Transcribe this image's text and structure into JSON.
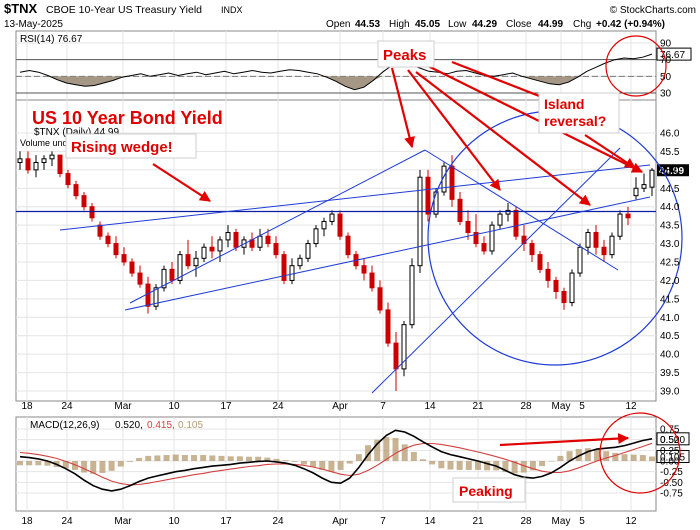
{
  "header": {
    "symbol": "$TNX",
    "name": "CBOE 10-Year US Treasury Yield",
    "exchange": "INDX",
    "date": "13-May-2025",
    "copyright": "© StockCharts.com",
    "ohlc": {
      "open_label": "Open",
      "open": "44.53",
      "high_label": "High",
      "high": "45.05",
      "low_label": "Low",
      "low": "44.29",
      "close_label": "Close",
      "close": "44.99",
      "chg_label": "Chg",
      "chg": "+0.42 (+0.94%)"
    }
  },
  "colors": {
    "up": "#000000",
    "down": "#cc0000",
    "trend": "#1f3cd8",
    "annotation": "#e00000",
    "rsi_fill": "#9b8c78",
    "macd_signal": "#d44040",
    "hist": "#b59b6f"
  },
  "annotations": {
    "title": "US 10 Year Bond  Yield",
    "peaks": "Peaks",
    "island": "Island reversal?",
    "island_line1": "Island",
    "island_line2": "reversal?",
    "wedge": "Rising wedge!",
    "peaking": "Peaking"
  },
  "chart_data": [
    {
      "type": "line",
      "panel": "RSI",
      "legend": "RSI(14) 76.67",
      "current_label": "76.67",
      "yticks": [
        30,
        50,
        70,
        90
      ],
      "ylim": [
        22,
        95
      ],
      "levels": [
        30,
        70
      ],
      "values": [
        55,
        57,
        55,
        51,
        46,
        42,
        40,
        38,
        39,
        42,
        45,
        49,
        51,
        53,
        50,
        52,
        54,
        51,
        53,
        55,
        52,
        54,
        56,
        53,
        55,
        57,
        55,
        54,
        56,
        58,
        57,
        55,
        53,
        49,
        44,
        38,
        34,
        37,
        45,
        55,
        63,
        68,
        64,
        60,
        56,
        55,
        53,
        56,
        57,
        54,
        51,
        50,
        52,
        54,
        50,
        47,
        44,
        41,
        40,
        43,
        49,
        56,
        61,
        66,
        70,
        72,
        71,
        73,
        76.67
      ]
    },
    {
      "type": "candlestick",
      "panel": "Price",
      "legend": "$TNX (Daily) 44.99",
      "volume_legend": "Volume undef",
      "current_label": "44.99",
      "yticks": [
        39.0,
        39.5,
        40.0,
        40.5,
        41.0,
        41.5,
        42.0,
        42.5,
        43.0,
        43.5,
        44.0,
        44.5,
        45.0,
        45.5,
        46.0
      ],
      "ylim": [
        38.85,
        46.25
      ],
      "xtick_labels": [
        "18",
        "24",
        "Mar",
        "10",
        "17",
        "24",
        "Apr",
        "7",
        "14",
        "21",
        "28",
        "May",
        "5",
        "12"
      ],
      "horizontal_line": 43.87,
      "candles": [
        [
          45.2,
          45.5,
          45.0,
          45.3
        ],
        [
          45.3,
          45.5,
          44.9,
          45.0
        ],
        [
          45.0,
          45.4,
          44.8,
          45.2
        ],
        [
          45.2,
          45.4,
          45.0,
          45.3
        ],
        [
          45.3,
          45.5,
          45.1,
          45.4
        ],
        [
          45.4,
          45.4,
          44.8,
          44.9
        ],
        [
          44.9,
          45.0,
          44.5,
          44.6
        ],
        [
          44.6,
          44.7,
          44.2,
          44.3
        ],
        [
          44.3,
          44.4,
          43.9,
          44.0
        ],
        [
          44.0,
          44.1,
          43.6,
          43.7
        ],
        [
          43.5,
          43.6,
          43.1,
          43.2
        ],
        [
          43.2,
          43.3,
          42.9,
          43.0
        ],
        [
          43.0,
          43.2,
          42.6,
          42.7
        ],
        [
          42.7,
          42.9,
          42.4,
          42.5
        ],
        [
          42.5,
          42.6,
          42.1,
          42.2
        ],
        [
          42.2,
          42.4,
          41.8,
          41.9
        ],
        [
          41.9,
          42.1,
          41.1,
          41.3
        ],
        [
          41.3,
          41.9,
          41.2,
          41.8
        ],
        [
          41.8,
          42.4,
          41.7,
          42.3
        ],
        [
          42.3,
          42.5,
          41.9,
          42.0
        ],
        [
          42.0,
          42.8,
          41.9,
          42.7
        ],
        [
          42.7,
          43.1,
          42.3,
          42.4
        ],
        [
          42.4,
          42.8,
          42.1,
          42.6
        ],
        [
          42.6,
          43.0,
          42.5,
          42.9
        ],
        [
          42.9,
          43.2,
          42.6,
          42.8
        ],
        [
          42.8,
          43.2,
          42.5,
          43.1
        ],
        [
          43.1,
          43.5,
          42.9,
          43.3
        ],
        [
          43.3,
          43.4,
          42.8,
          42.9
        ],
        [
          42.9,
          43.2,
          42.7,
          43.1
        ],
        [
          43.1,
          43.3,
          42.8,
          42.9
        ],
        [
          42.9,
          43.4,
          42.8,
          43.2
        ],
        [
          43.2,
          43.4,
          42.9,
          43.0
        ],
        [
          43.0,
          43.2,
          42.6,
          42.7
        ],
        [
          42.7,
          42.8,
          41.9,
          42.0
        ],
        [
          42.0,
          42.6,
          41.9,
          42.4
        ],
        [
          42.4,
          42.7,
          42.3,
          42.6
        ],
        [
          42.6,
          43.1,
          42.5,
          43.0
        ],
        [
          43.0,
          43.5,
          42.9,
          43.4
        ],
        [
          43.4,
          43.7,
          43.2,
          43.6
        ],
        [
          43.6,
          43.9,
          43.5,
          43.8
        ],
        [
          43.8,
          43.9,
          43.1,
          43.2
        ],
        [
          43.2,
          43.3,
          42.6,
          42.7
        ],
        [
          42.7,
          42.8,
          42.3,
          42.4
        ],
        [
          42.4,
          42.6,
          42.0,
          42.2
        ],
        [
          42.2,
          42.4,
          41.7,
          41.8
        ],
        [
          41.8,
          42.0,
          41.1,
          41.2
        ],
        [
          41.2,
          41.4,
          40.2,
          40.3
        ],
        [
          40.3,
          40.6,
          39.0,
          39.6
        ],
        [
          39.6,
          40.9,
          39.4,
          40.8
        ],
        [
          40.8,
          42.6,
          40.7,
          42.4
        ],
        [
          42.4,
          45.0,
          42.2,
          44.8
        ],
        [
          44.8,
          45.0,
          43.6,
          43.8
        ],
        [
          43.8,
          44.5,
          43.7,
          44.4
        ],
        [
          44.4,
          45.2,
          44.3,
          45.1
        ],
        [
          45.1,
          45.4,
          44.0,
          44.2
        ],
        [
          44.2,
          44.4,
          43.5,
          43.6
        ],
        [
          43.6,
          43.9,
          43.1,
          43.3
        ],
        [
          43.3,
          43.8,
          42.9,
          43.0
        ],
        [
          43.0,
          43.2,
          42.7,
          42.8
        ],
        [
          42.8,
          43.6,
          42.7,
          43.5
        ],
        [
          43.5,
          43.9,
          43.4,
          43.8
        ],
        [
          43.8,
          44.1,
          43.6,
          43.9
        ],
        [
          43.9,
          44.0,
          43.1,
          43.2
        ],
        [
          43.2,
          43.5,
          42.8,
          43.0
        ],
        [
          43.0,
          43.1,
          42.5,
          42.7
        ],
        [
          42.7,
          42.8,
          42.2,
          42.3
        ],
        [
          42.3,
          42.5,
          41.8,
          42.0
        ],
        [
          42.0,
          42.1,
          41.5,
          41.7
        ],
        [
          41.7,
          41.8,
          41.2,
          41.4
        ],
        [
          41.4,
          42.3,
          41.3,
          42.2
        ],
        [
          42.2,
          43.0,
          42.1,
          42.9
        ],
        [
          42.9,
          43.4,
          42.7,
          43.3
        ],
        [
          43.3,
          43.5,
          42.7,
          42.9
        ],
        [
          42.9,
          43.1,
          42.5,
          42.7
        ],
        [
          42.7,
          43.3,
          42.6,
          43.2
        ],
        [
          43.2,
          43.9,
          43.1,
          43.8
        ],
        [
          43.8,
          44.0,
          43.5,
          43.7
        ],
        [
          44.3,
          44.8,
          44.2,
          44.5
        ],
        [
          44.5,
          44.9,
          44.4,
          44.6
        ],
        [
          44.53,
          45.05,
          44.29,
          44.99
        ]
      ]
    },
    {
      "type": "line",
      "panel": "MACD",
      "legend_name": "MACD(12,26,9)",
      "legend_macd": "0.520,",
      "legend_signal": "0.415,",
      "legend_hist": "0.105",
      "current_macd_label": "0.520",
      "current_hist_label": "0.105",
      "yticks": [
        -0.75,
        -0.5,
        -0.25,
        0.0,
        0.25,
        0.5,
        0.75
      ],
      "yticklabels": [
        "-0.75",
        "-0.50",
        "-0.25",
        "0.00",
        "0.25",
        "0.50",
        "0.75"
      ],
      "ylim": [
        -0.9,
        0.9
      ],
      "series": [
        {
          "name": "MACD",
          "values": [
            0.1,
            0.08,
            0.05,
            0.0,
            -0.08,
            -0.18,
            -0.3,
            -0.45,
            -0.58,
            -0.66,
            -0.7,
            -0.66,
            -0.58,
            -0.48,
            -0.4,
            -0.35,
            -0.3,
            -0.25,
            -0.22,
            -0.18,
            -0.15,
            -0.12,
            -0.1,
            -0.08,
            -0.05,
            -0.03,
            -0.01,
            0.0,
            -0.02,
            -0.05,
            -0.1,
            -0.18,
            -0.28,
            -0.4,
            -0.5,
            -0.52,
            -0.4,
            -0.15,
            0.15,
            0.4,
            0.6,
            0.72,
            0.68,
            0.58,
            0.45,
            0.33,
            0.22,
            0.15,
            0.1,
            0.05,
            0.0,
            -0.06,
            -0.12,
            -0.22,
            -0.32,
            -0.38,
            -0.4,
            -0.36,
            -0.28,
            -0.15,
            0.0,
            0.12,
            0.22,
            0.28,
            0.3,
            0.32,
            0.36,
            0.42,
            0.48,
            0.52
          ]
        },
        {
          "name": "Signal",
          "values": [
            0.2,
            0.18,
            0.15,
            0.11,
            0.06,
            -0.01,
            -0.09,
            -0.18,
            -0.28,
            -0.38,
            -0.47,
            -0.53,
            -0.56,
            -0.55,
            -0.52,
            -0.48,
            -0.44,
            -0.4,
            -0.36,
            -0.32,
            -0.29,
            -0.25,
            -0.22,
            -0.19,
            -0.16,
            -0.13,
            -0.11,
            -0.08,
            -0.07,
            -0.07,
            -0.08,
            -0.1,
            -0.14,
            -0.19,
            -0.25,
            -0.31,
            -0.34,
            -0.31,
            -0.22,
            -0.1,
            0.04,
            0.18,
            0.29,
            0.37,
            0.41,
            0.41,
            0.39,
            0.35,
            0.31,
            0.26,
            0.21,
            0.16,
            0.1,
            0.04,
            -0.03,
            -0.11,
            -0.18,
            -0.24,
            -0.27,
            -0.27,
            -0.23,
            -0.16,
            -0.08,
            0.0,
            0.07,
            0.13,
            0.2,
            0.27,
            0.34,
            0.415
          ]
        }
      ]
    }
  ]
}
